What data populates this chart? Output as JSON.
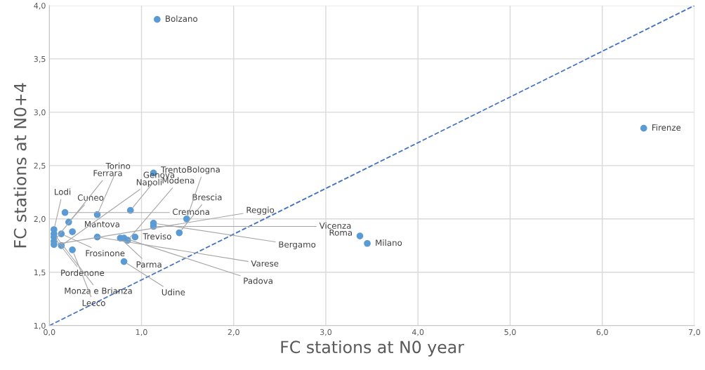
{
  "chart_data": {
    "type": "scatter",
    "xlabel": "FC stations at N0 year",
    "ylabel": "FC stations at N0+4",
    "xlim": [
      0,
      7
    ],
    "ylim": [
      1,
      4
    ],
    "grid": true,
    "legend": false,
    "marker": "circle",
    "xticks": [
      {
        "value": 0,
        "label": "0,0"
      },
      {
        "value": 1,
        "label": "1,0"
      },
      {
        "value": 2,
        "label": "2,0"
      },
      {
        "value": 3,
        "label": "3,0"
      },
      {
        "value": 4,
        "label": "4,0"
      },
      {
        "value": 5,
        "label": "5,0"
      },
      {
        "value": 6,
        "label": "6,0"
      },
      {
        "value": 7,
        "label": "7,0"
      }
    ],
    "yticks": [
      {
        "value": 1,
        "label": "1,0"
      },
      {
        "value": 1.5,
        "label": "1,5"
      },
      {
        "value": 2,
        "label": "2,0"
      },
      {
        "value": 2.5,
        "label": "2,5"
      },
      {
        "value": 3,
        "label": "3,0"
      },
      {
        "value": 3.5,
        "label": "3,5"
      },
      {
        "value": 4,
        "label": "4,0"
      }
    ],
    "series": [
      {
        "color": "#5b9bd5",
        "x": [
          1.17,
          6.45,
          1.13,
          0.17,
          0.52,
          0.88,
          1.49,
          3.37,
          3.45,
          0.21,
          1.13,
          1.13,
          1.41,
          0.81,
          0.05,
          0.13,
          0.05,
          0.05,
          0.05,
          0.13,
          0.05,
          0.25,
          0.25,
          0.52,
          0.77,
          0.81,
          0.85,
          0.93
        ],
        "values": [
          3.87,
          2.85,
          2.43,
          2.06,
          2.04,
          2.08,
          2.0,
          1.84,
          1.77,
          1.97,
          1.96,
          1.93,
          1.87,
          1.6,
          1.9,
          1.86,
          1.83,
          1.79,
          1.76,
          1.75,
          1.86,
          1.88,
          1.71,
          1.83,
          1.82,
          1.82,
          1.8,
          1.83
        ]
      },
      {
        "type": "line",
        "color": "#4472c4",
        "line_style": "dashed",
        "marker": "none",
        "x": [
          0,
          7
        ],
        "values": [
          1,
          4
        ]
      }
    ],
    "annotations": [
      {
        "text": "Bolzano",
        "x": 1.17,
        "y": 3.87
      },
      {
        "text": "Firenze",
        "x": 6.45,
        "y": 2.85
      },
      {
        "text": "Trento",
        "x": 1.13,
        "y": 2.43
      },
      {
        "text": "Cremona",
        "x": 0.17,
        "y": 2.06
      },
      {
        "text": "Torino",
        "x": 0.52,
        "y": 2.04
      },
      {
        "text": "Genova",
        "x": 0.88,
        "y": 2.08
      },
      {
        "text": "Bologna",
        "x": 1.49,
        "y": 2.0
      },
      {
        "text": "Roma",
        "x": 3.37,
        "y": 1.84
      },
      {
        "text": "Milano",
        "x": 3.45,
        "y": 1.77
      },
      {
        "text": "Cuneo",
        "x": 0.21,
        "y": 1.97
      },
      {
        "text": "Bergamo",
        "x": 1.13,
        "y": 1.96
      },
      {
        "text": "Vicenza",
        "x": 1.13,
        "y": 1.93
      },
      {
        "text": "Brescia",
        "x": 1.41,
        "y": 1.87
      },
      {
        "text": "Udine",
        "x": 0.81,
        "y": 1.6
      },
      {
        "text": "Lodi",
        "x": 0.05,
        "y": 1.9
      },
      {
        "text": "Frosinone",
        "x": 0.13,
        "y": 1.86
      },
      {
        "text": "Pordenone",
        "x": 0.05,
        "y": 1.83
      },
      {
        "text": "Ferrara",
        "x": 0.05,
        "y": 1.79
      },
      {
        "text": "Reggio",
        "x": 0.05,
        "y": 1.76
      },
      {
        "text": "Napoli",
        "x": 0.13,
        "y": 1.75
      },
      {
        "text": "Monza e Brianza",
        "x": 0.05,
        "y": 1.86
      },
      {
        "text": "Mantova",
        "x": 0.25,
        "y": 1.88
      },
      {
        "text": "Lecco",
        "x": 0.25,
        "y": 1.71
      },
      {
        "text": "Varese",
        "x": 0.52,
        "y": 1.83
      },
      {
        "text": "Parma",
        "x": 0.77,
        "y": 1.82
      },
      {
        "text": "Padova",
        "x": 0.81,
        "y": 1.82
      },
      {
        "text": "Modena",
        "x": 0.85,
        "y": 1.8
      },
      {
        "text": "Treviso",
        "x": 0.93,
        "y": 1.83
      }
    ]
  }
}
